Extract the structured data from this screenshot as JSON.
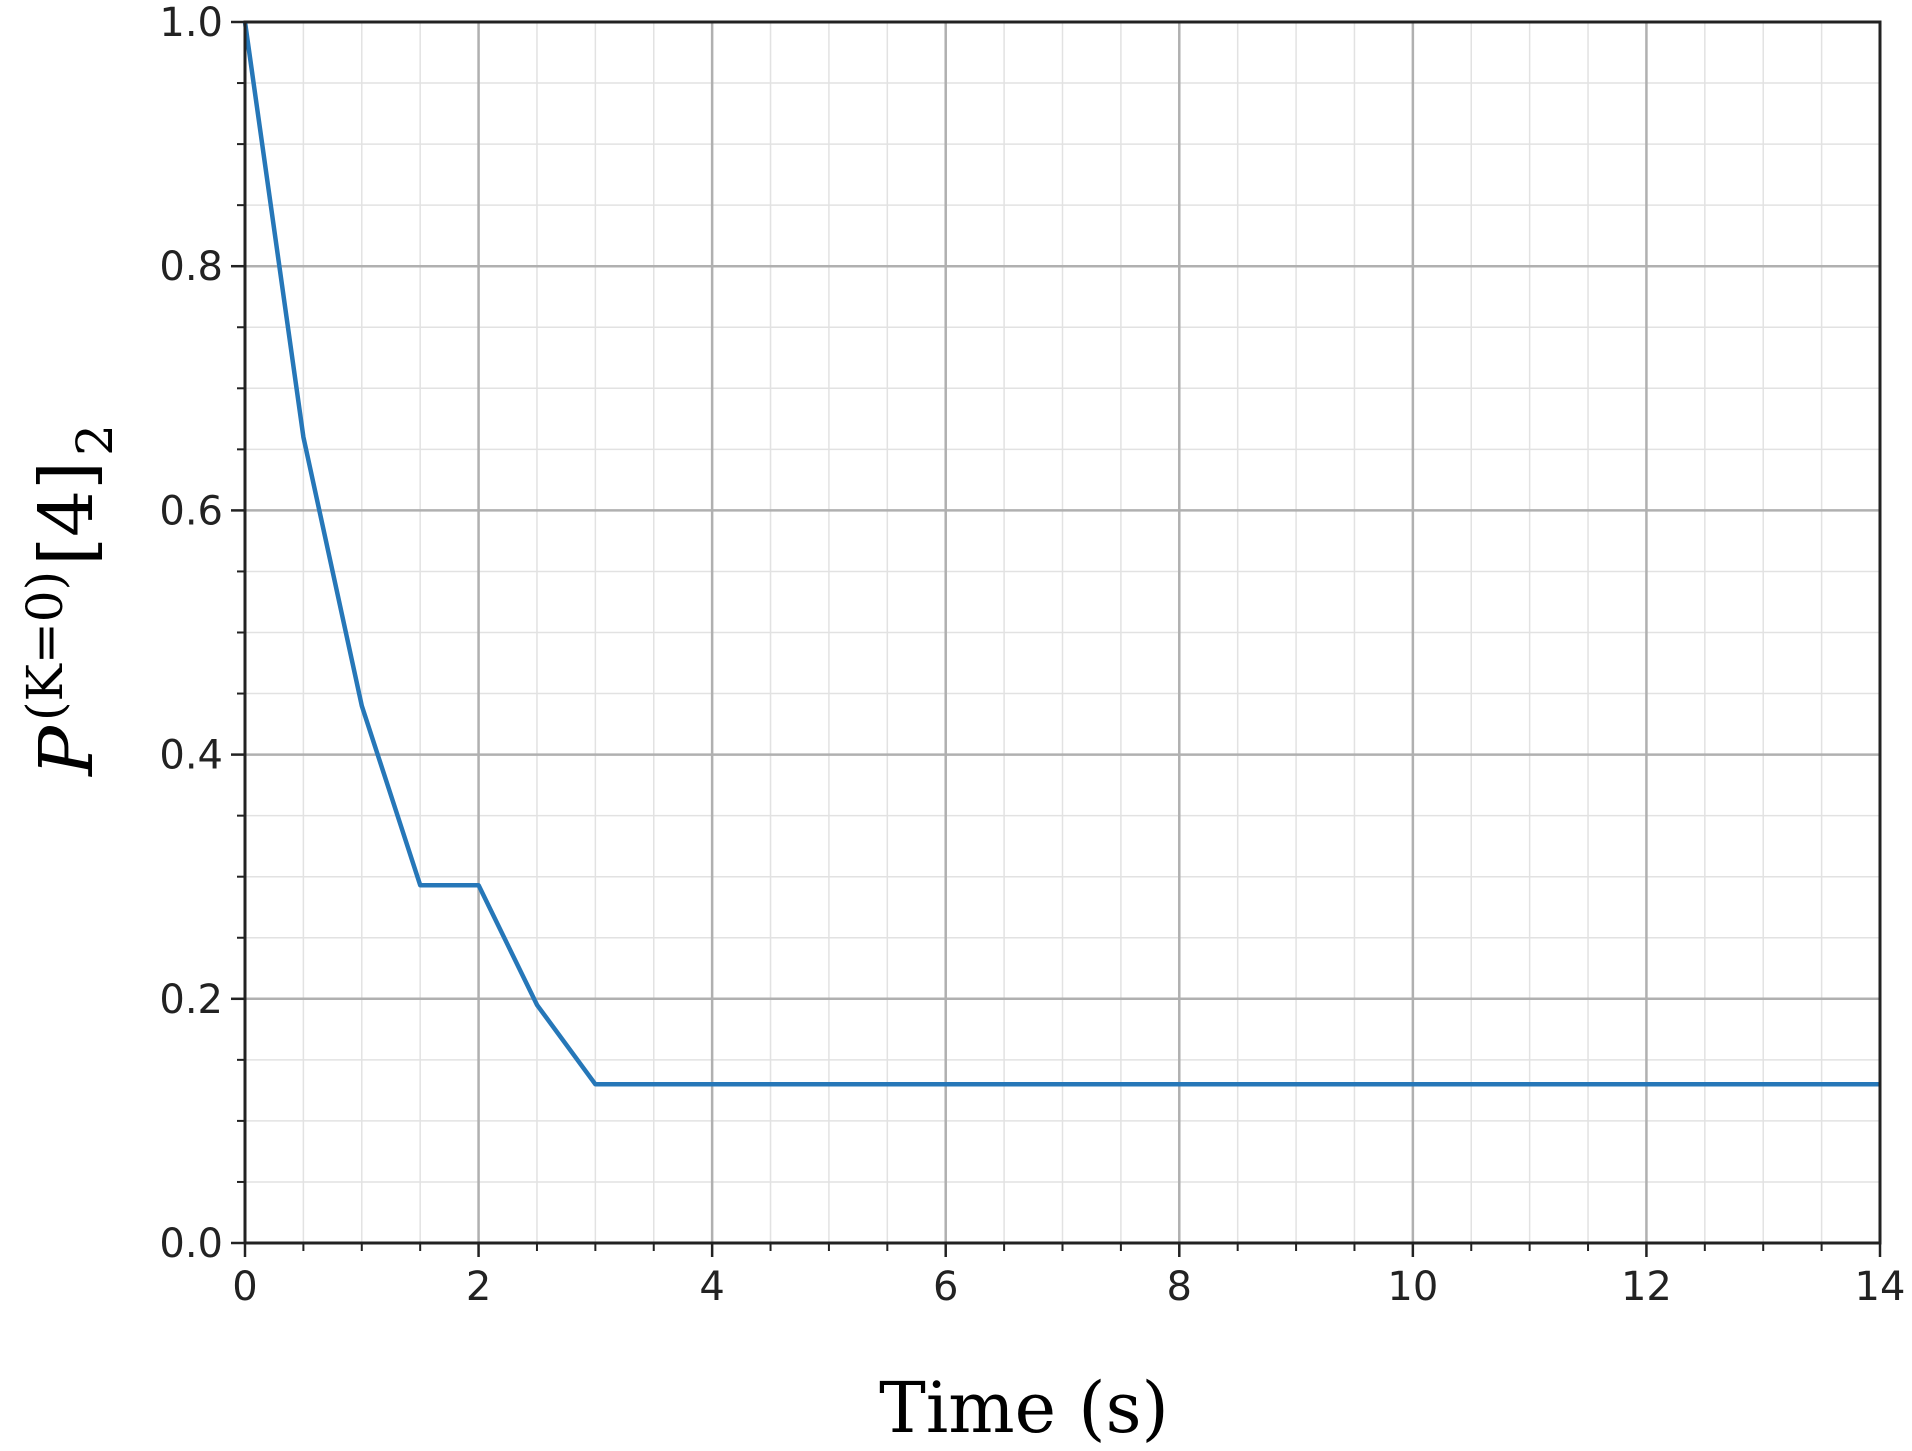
{
  "chart_data": {
    "type": "line",
    "title": "",
    "xlabel": "Time (s)",
    "ylabel": {
      "main": "P",
      "superscript": "(K=0)",
      "body": "[4]",
      "subscript": "2"
    },
    "xlim": [
      0,
      14
    ],
    "ylim": [
      0,
      1
    ],
    "x_ticks": [
      "0",
      "2",
      "4",
      "6",
      "8",
      "10",
      "12",
      "14"
    ],
    "y_ticks": [
      "0.0",
      "0.2",
      "0.4",
      "0.6",
      "0.8",
      "1.0"
    ],
    "grid": true,
    "minor_grid": true,
    "legend": "none",
    "colors": {
      "line": "#2677b8",
      "major_grid": "#b0b0b0",
      "minor_grid": "#e2e2e2",
      "axes": "#222222"
    },
    "series": [
      {
        "x": [
          0,
          0.5,
          1,
          1.5,
          2,
          2.5,
          3,
          14
        ],
        "values": [
          1.0,
          0.66,
          0.44,
          0.293,
          0.293,
          0.195,
          0.13,
          0.13
        ]
      }
    ]
  }
}
